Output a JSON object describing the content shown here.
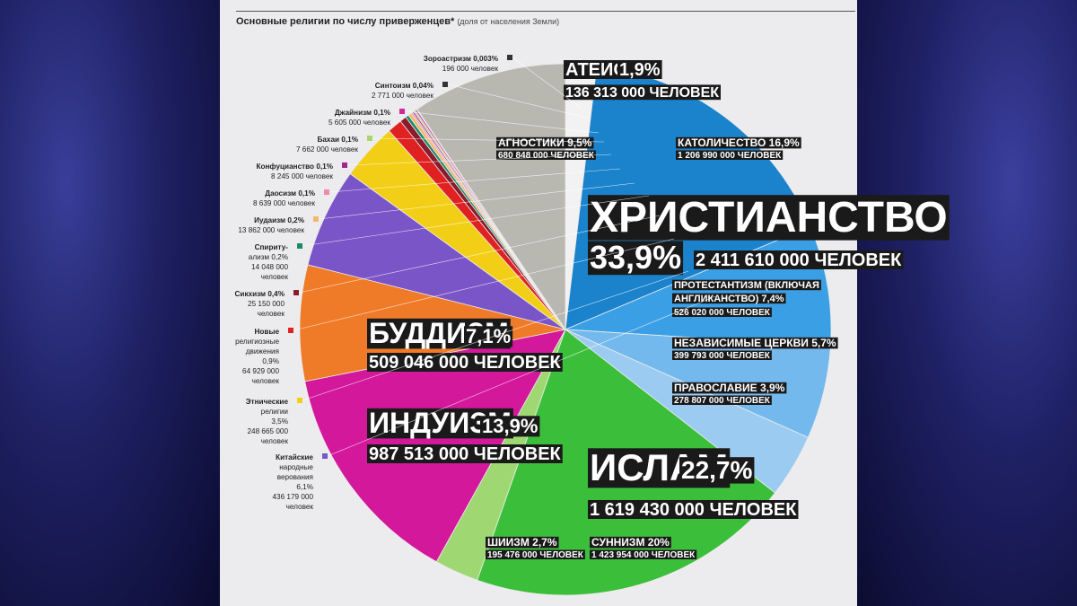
{
  "header": {
    "title": "Основные религии по числу приверженцев*",
    "subtitle": "(доля от населения Земли)"
  },
  "chart_data": {
    "type": "pie",
    "title": "Основные религии по числу приверженцев*",
    "subtitle": "(доля от населения Земли)",
    "slices": [
      {
        "name": "Атеисты",
        "percent": "1,9%",
        "value": 1.9,
        "count": "136 313 000 человек",
        "color": "#f2f2f2"
      },
      {
        "name": "Католичество",
        "percent": "16,9%",
        "value": 16.9,
        "count": "1 206 990 000 человек",
        "color": "#1b82cc",
        "group": "Христианство"
      },
      {
        "name": "Протестантизм (включая англиканство)",
        "percent": "7,4%",
        "value": 7.4,
        "count": "526 020 000 человек",
        "color": "#3b9fe6",
        "group": "Христианство"
      },
      {
        "name": "Независимые церкви",
        "percent": "5,7%",
        "value": 5.7,
        "count": "399 793 000 человек",
        "color": "#74b9ee",
        "group": "Христианство"
      },
      {
        "name": "Православие",
        "percent": "3,9%",
        "value": 3.9,
        "count": "278 807 000 человек",
        "color": "#9ccbf2",
        "group": "Христианство"
      },
      {
        "name": "Суннизм",
        "percent": "20%",
        "value": 20,
        "count": "1 423 954 000 человек",
        "color": "#3bbf3b",
        "group": "Ислам"
      },
      {
        "name": "Шиизм",
        "percent": "2,7%",
        "value": 2.7,
        "count": "195 476 000 человек",
        "color": "#9fd872",
        "group": "Ислам"
      },
      {
        "name": "Индуизм",
        "percent": "13,9%",
        "value": 13.9,
        "count": "987 513 000 человек",
        "color": "#d3189c"
      },
      {
        "name": "Буддизм",
        "percent": "7,1%",
        "value": 7.1,
        "count": "509 046 000 человек",
        "color": "#ef7a27"
      },
      {
        "name": "Китайские народные верования",
        "percent": "6,1%",
        "value": 6.1,
        "count": "436 179 000 человек",
        "color": "#7a55c8"
      },
      {
        "name": "Этнические религии",
        "percent": "3,5%",
        "value": 3.5,
        "count": "248 665 000 человек",
        "color": "#f2cf16"
      },
      {
        "name": "Новые религиозные движения",
        "percent": "0,9%",
        "value": 0.9,
        "count": "64 929 000 человек",
        "color": "#e02121"
      },
      {
        "name": "Сикхизм",
        "percent": "0,4%",
        "value": 0.4,
        "count": "25 150 000 человек",
        "color": "#8b1a2a"
      },
      {
        "name": "Спиритуализм",
        "percent": "0,2%",
        "value": 0.2,
        "count": "14 048 000 человек",
        "color": "#1a8a6a"
      },
      {
        "name": "Иудаизм",
        "percent": "0,2%",
        "value": 0.2,
        "count": "13 862 000 человек",
        "color": "#f2b86a"
      },
      {
        "name": "Даосизм",
        "percent": "0,1%",
        "value": 0.1,
        "count": "8 639 000 человек",
        "color": "#f08aa8"
      },
      {
        "name": "Конфуцианство",
        "percent": "0,1%",
        "value": 0.1,
        "count": "8 245 000 человек",
        "color": "#a4258a"
      },
      {
        "name": "Бахаи",
        "percent": "0,1%",
        "value": 0.1,
        "count": "7 662 000 человек",
        "color": "#a8d86a"
      },
      {
        "name": "Джайнизм",
        "percent": "0,1%",
        "value": 0.1,
        "count": "5 605 000 человек",
        "color": "#d02a9a"
      },
      {
        "name": "Синтоизм",
        "percent": "0,04%",
        "value": 0.04,
        "count": "2 771 000 человек",
        "color": "#333333"
      },
      {
        "name": "Зороастризм",
        "percent": "0,003%",
        "value": 0.003,
        "count": "196 000 человек",
        "color": "#333333"
      },
      {
        "name": "Агностики",
        "percent": "9,5%",
        "value": 9.5,
        "count": "680 848 000 человек",
        "color": "#b8b8b0"
      }
    ],
    "groups": [
      {
        "name": "Христианство",
        "percent": "33,9%",
        "count": "2 411 610 000 человек"
      },
      {
        "name": "Ислам",
        "percent": "22,7%",
        "count": "1 619 430 000 человек"
      }
    ],
    "big_labels": {
      "buddhism": {
        "name": "Буддизм",
        "percent": "7,1%",
        "count": "509 046 000 человек"
      },
      "hinduism": {
        "name": "Индуизм",
        "percent": "13,9%",
        "count": "987 513 000 человек"
      },
      "atheists": {
        "name": "Атеисты",
        "percent": "1,9%",
        "count": "136 313 000 человек"
      }
    },
    "left_labels": [
      {
        "lines": [
          "Зороастризм 0,003%",
          "196 000 человек"
        ],
        "color": "#333333"
      },
      {
        "lines": [
          "Синтоизм 0,04%",
          "2 771 000 человек"
        ],
        "color": "#333333"
      },
      {
        "lines": [
          "Джайнизм 0,1%",
          "5 605 000 человек"
        ],
        "color": "#d02a9a"
      },
      {
        "lines": [
          "Бахаи 0,1%",
          "7 662 000 человек"
        ],
        "color": "#a8d86a"
      },
      {
        "lines": [
          "Конфуцианство 0,1%",
          "8 245 000 человек"
        ],
        "color": "#a4258a"
      },
      {
        "lines": [
          "Даосизм 0,1%",
          "8 639 000 человек"
        ],
        "color": "#f08aa8"
      },
      {
        "lines": [
          "Иудаизм 0,2%",
          "13 862 000 человек"
        ],
        "color": "#f2b86a"
      },
      {
        "lines": [
          "Спириту-",
          "ализм 0,2%",
          "14 048 000",
          "человек"
        ],
        "color": "#1a8a6a"
      },
      {
        "lines": [
          "Сикхизм 0,4%",
          "25 150 000",
          "человек"
        ],
        "color": "#8b1a2a"
      },
      {
        "lines": [
          "Новые",
          "религиозные",
          "движения",
          "0,9%",
          "64 929 000",
          "человек"
        ],
        "color": "#e02121"
      },
      {
        "lines": [
          "Этнические",
          "религии",
          "3,5%",
          "248 665 000",
          "человек"
        ],
        "color": "#f2cf16"
      },
      {
        "lines": [
          "Китайские",
          "народные",
          "верования",
          "6,1%",
          "436 179 000",
          "человек"
        ],
        "color": "#7a55c8"
      }
    ]
  }
}
